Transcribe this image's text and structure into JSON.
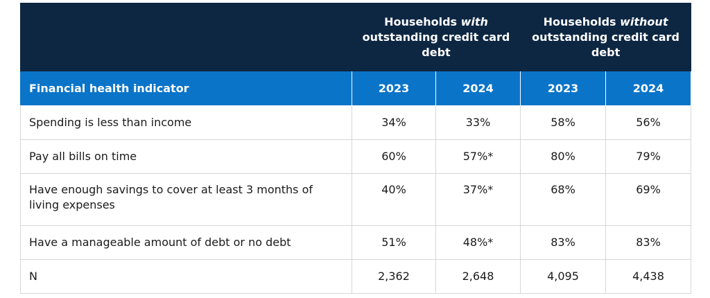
{
  "groups": {
    "with": {
      "pre": "Households ",
      "em": "with",
      "post": " outstanding credit card debt"
    },
    "without": {
      "pre": "Households ",
      "em": "without",
      "post": " outstanding credit card debt"
    }
  },
  "header": {
    "indicator": "Financial health indicator",
    "years": [
      "2023",
      "2024",
      "2023",
      "2024"
    ]
  },
  "rows": [
    {
      "label": "Spending is less than income",
      "values": [
        "34%",
        "33%",
        "58%",
        "56%"
      ]
    },
    {
      "label": "Pay all bills on time",
      "values": [
        "60%",
        "57%*",
        "80%",
        "79%"
      ]
    },
    {
      "label": "Have enough savings to cover at least 3 months of living expenses",
      "values": [
        "40%",
        "37%*",
        "68%",
        "69%"
      ]
    },
    {
      "label": "Have a manageable amount of debt or no debt",
      "values": [
        "51%",
        "48%*",
        "83%",
        "83%"
      ]
    },
    {
      "label": "N",
      "values": [
        "2,362",
        "2,648",
        "4,095",
        "4,438"
      ]
    }
  ]
}
